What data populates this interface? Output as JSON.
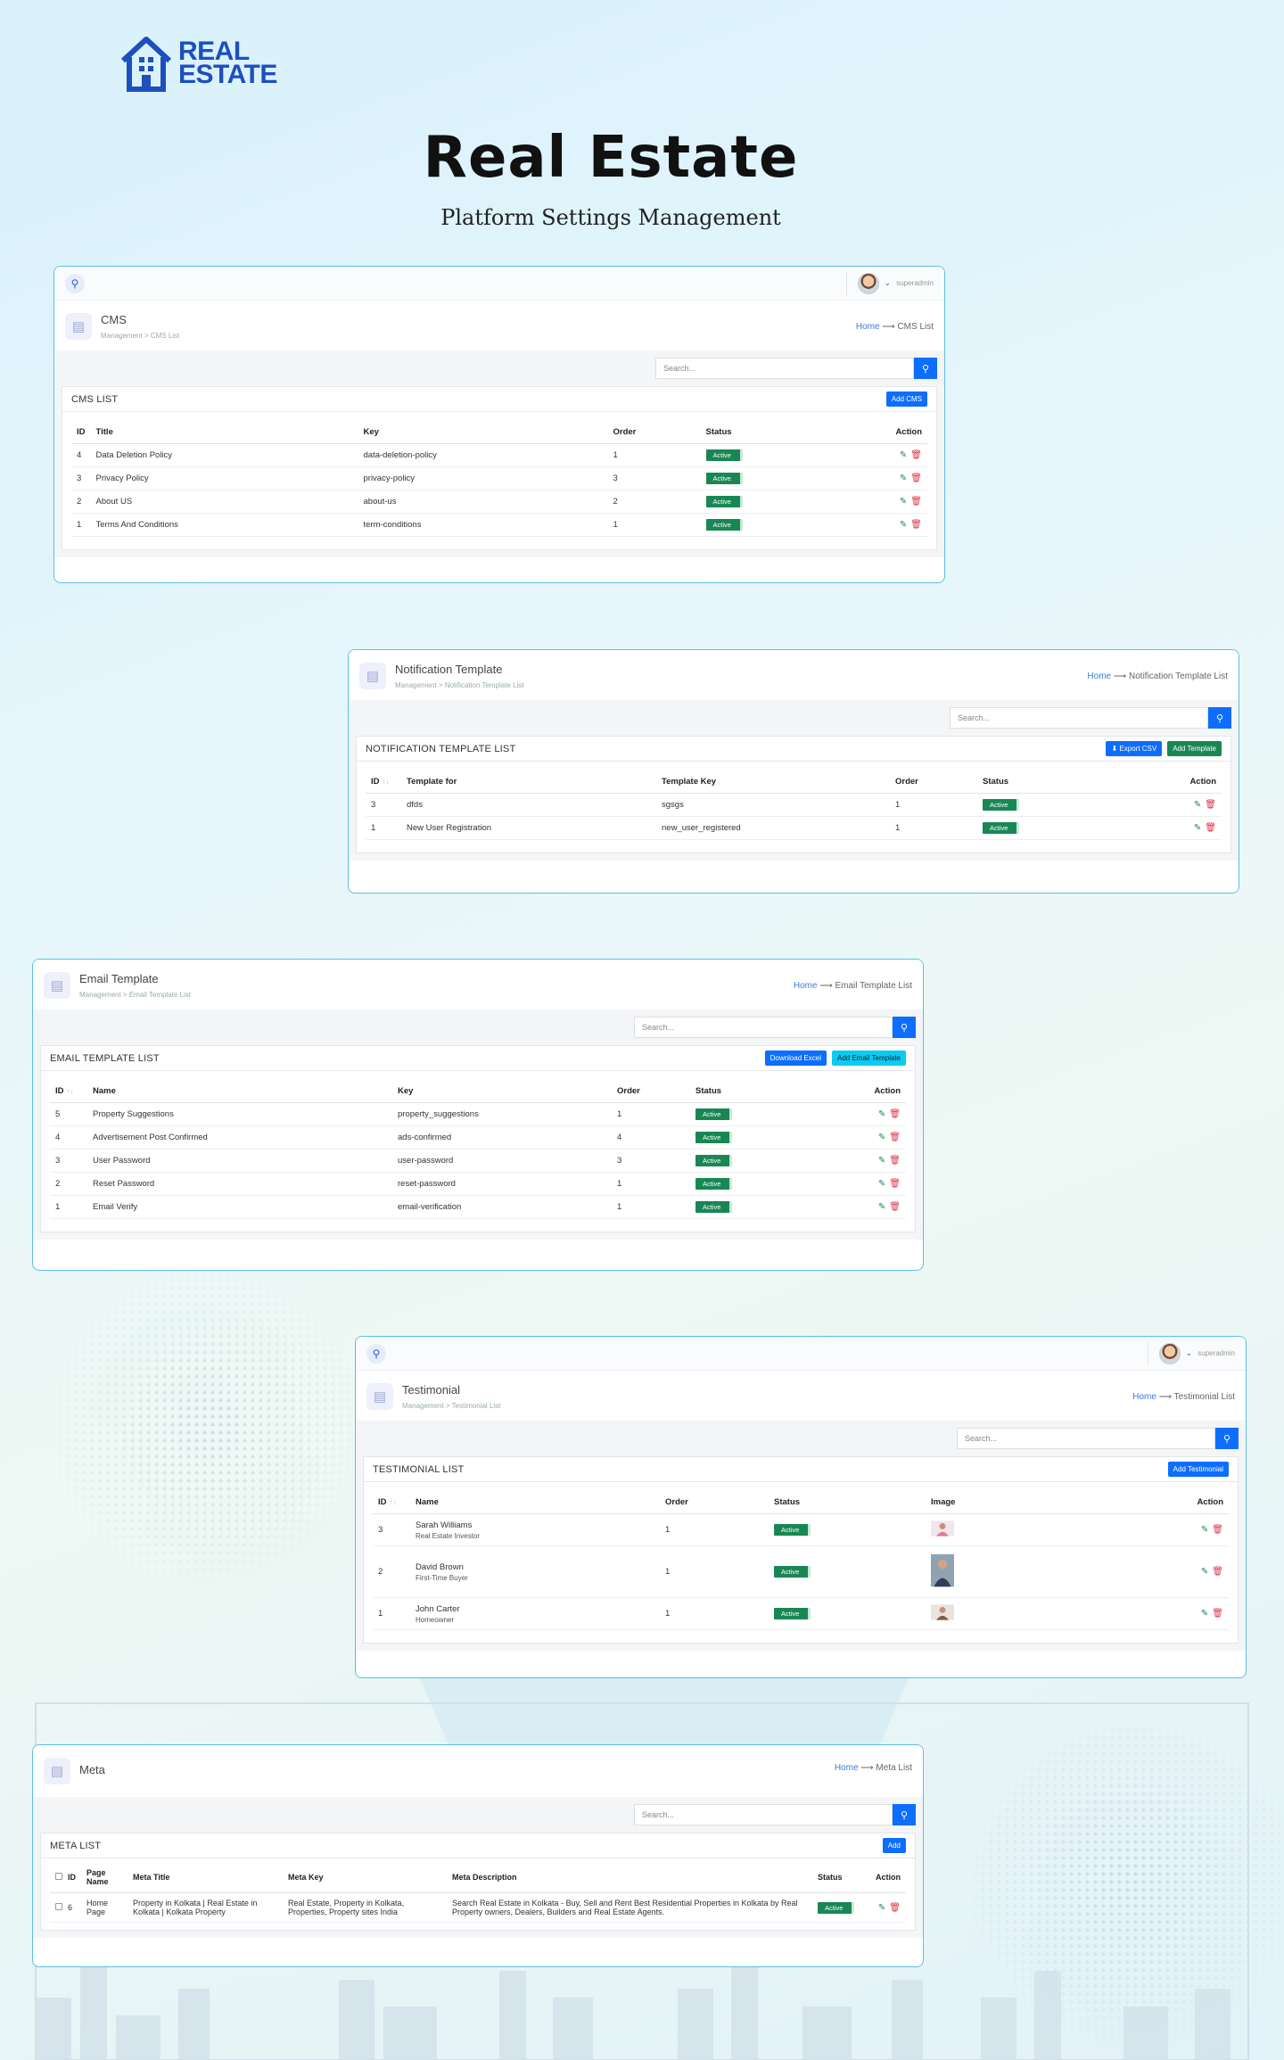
{
  "brand": {
    "line1": "REAL",
    "line2": "ESTATE",
    "color": "#1d4fbf"
  },
  "hero": {
    "title": "Real Estate",
    "subtitle": "Platform Settings Management"
  },
  "topbar": {
    "username": "superadmin"
  },
  "cms": {
    "title": "CMS",
    "subtitle": "Management > CMS List",
    "breadcrumb": {
      "home": "Home",
      "arrow": "⟶",
      "current": "CMS List"
    },
    "search_placeholder": "Search...",
    "list_title": "CMS LIST",
    "add_label": "Add CMS",
    "columns": [
      "ID",
      "Title",
      "Key",
      "Order",
      "Status",
      "Action"
    ],
    "rows": [
      {
        "id": "4",
        "title": "Data Deletion Policy",
        "key": "data-deletion-policy",
        "order": "1",
        "status": "Active"
      },
      {
        "id": "3",
        "title": "Privacy Policy",
        "key": "privacy-policy",
        "order": "3",
        "status": "Active"
      },
      {
        "id": "2",
        "title": "About US",
        "key": "about-us",
        "order": "2",
        "status": "Active"
      },
      {
        "id": "1",
        "title": "Terms And Conditions",
        "key": "term-conditions",
        "order": "1",
        "status": "Active"
      }
    ]
  },
  "notification": {
    "title": "Notification Template",
    "subtitle": "Management > Notification Template List",
    "breadcrumb": {
      "home": "Home",
      "arrow": "⟶",
      "current": "Notification Template List"
    },
    "search_placeholder": "Search...",
    "list_title": "NOTIFICATION TEMPLATE LIST",
    "export_label": "Export CSV",
    "add_label": "Add Template",
    "columns": [
      "ID",
      "Template for",
      "Template Key",
      "Order",
      "Status",
      "Action"
    ],
    "rows": [
      {
        "id": "3",
        "template_for": "dfds",
        "key": "sgsgs",
        "order": "1",
        "status": "Active"
      },
      {
        "id": "1",
        "template_for": "New User Registration",
        "key": "new_user_registered",
        "order": "1",
        "status": "Active"
      }
    ]
  },
  "email": {
    "title": "Email Template",
    "subtitle": "Management > Email Template List",
    "breadcrumb": {
      "home": "Home",
      "arrow": "⟶",
      "current": "Email Template List"
    },
    "search_placeholder": "Search...",
    "list_title": "EMAIL TEMPLATE LIST",
    "download_label": "Download Excel",
    "add_label": "Add Email Template",
    "columns": [
      "ID",
      "Name",
      "Key",
      "Order",
      "Status",
      "Action"
    ],
    "rows": [
      {
        "id": "5",
        "name": "Property Suggestions",
        "key": "property_suggestions",
        "order": "1",
        "status": "Active"
      },
      {
        "id": "4",
        "name": "Advertisement Post Confirmed",
        "key": "ads-confirmed",
        "order": "4",
        "status": "Active"
      },
      {
        "id": "3",
        "name": "User Password",
        "key": "user-password",
        "order": "3",
        "status": "Active"
      },
      {
        "id": "2",
        "name": "Reset Password",
        "key": "reset-password",
        "order": "1",
        "status": "Active"
      },
      {
        "id": "1",
        "name": "Email Verify",
        "key": "email-verification",
        "order": "1",
        "status": "Active"
      }
    ]
  },
  "testimonial": {
    "title": "Testimonial",
    "subtitle": "Management > Testimonial List",
    "breadcrumb": {
      "home": "Home",
      "arrow": "⟶",
      "current": "Testimonial List"
    },
    "search_placeholder": "Search...",
    "list_title": "TESTIMONIAL LIST",
    "add_label": "Add Testimonial",
    "columns": [
      "ID",
      "Name",
      "Order",
      "Status",
      "Image",
      "Action"
    ],
    "rows": [
      {
        "id": "3",
        "name": "Sarah Williams",
        "role": "Real Estate Investor",
        "order": "1",
        "status": "Active"
      },
      {
        "id": "2",
        "name": "David Brown",
        "role": "First-Time Buyer",
        "order": "1",
        "status": "Active"
      },
      {
        "id": "1",
        "name": "John Carter",
        "role": "Homeowner",
        "order": "1",
        "status": "Active"
      }
    ]
  },
  "meta": {
    "title": "Meta",
    "breadcrumb": {
      "home": "Home",
      "arrow": "⟶",
      "current": "Meta List"
    },
    "search_placeholder": "Search...",
    "list_title": "META LIST",
    "add_label": "Add",
    "columns": [
      "ID",
      "Page Name",
      "Meta Title",
      "Meta Key",
      "Meta Description",
      "Status",
      "Action"
    ],
    "rows": [
      {
        "id": "6",
        "page": "Home Page",
        "meta_title": "Property in Kolkata | Real Estate in Kolkata | Kolkata Property",
        "meta_key": "Real Estate, Property in Kolkata, Properties, Property sites India",
        "meta_desc": "Search Real Estate in Kolkata - Buy, Sell and Rent Best Residential Properties in Kolkata by Real Property owners, Dealers, Builders and Real Estate Agents.",
        "status": "Active"
      }
    ]
  },
  "colors": {
    "primary": "#0d6efd",
    "success": "#198754",
    "danger": "#dc3545",
    "info": "#0dcaf0",
    "card_border": "#5bc0e4"
  }
}
